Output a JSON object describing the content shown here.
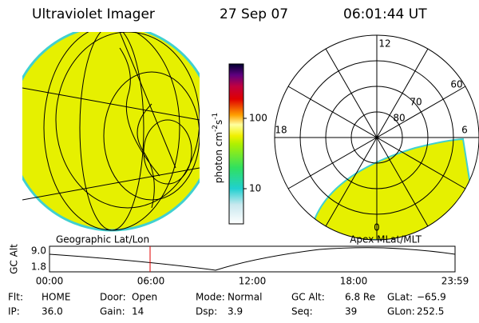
{
  "header": {
    "instrument": "Ultraviolet Imager",
    "date": "27 Sep 07",
    "time": "06:01:44 UT"
  },
  "geo_panel": {
    "label": "Geographic Lat/Lon"
  },
  "colorbar": {
    "unit": "photon cm",
    "exp1": "-2",
    "unit2": "s",
    "exp2": "-1",
    "ticks": [
      "100",
      "10"
    ]
  },
  "polar_panel": {
    "label": "Apex MLat/MLT",
    "mlt_labels": [
      "12",
      "18",
      "6",
      "0"
    ],
    "lat_labels": [
      "60",
      "70",
      "80"
    ]
  },
  "altitude_plot": {
    "ylabel": "GC Alt",
    "yticks": [
      "9.0",
      "1.8"
    ],
    "xticks": [
      "00:00",
      "06:00",
      "12:00",
      "18:00",
      "23:59"
    ]
  },
  "status": [
    [
      {
        "label": "Flt:",
        "value": "HOME"
      },
      {
        "label": "Door:",
        "value": "Open"
      },
      {
        "label": "Mode:",
        "value": "Normal"
      },
      {
        "label": "GC Alt:",
        "value": "6.8 Re"
      },
      {
        "label": "GLat:",
        "value": "−65.9"
      }
    ],
    [
      {
        "label": "IP:",
        "value": "36.0"
      },
      {
        "label": "Gain:",
        "value": "14"
      },
      {
        "label": "Dsp:",
        "value": "3.9"
      },
      {
        "label": "Seq:",
        "value": "39"
      },
      {
        "label": "GLon:",
        "value": "252.5"
      }
    ]
  ]
}
